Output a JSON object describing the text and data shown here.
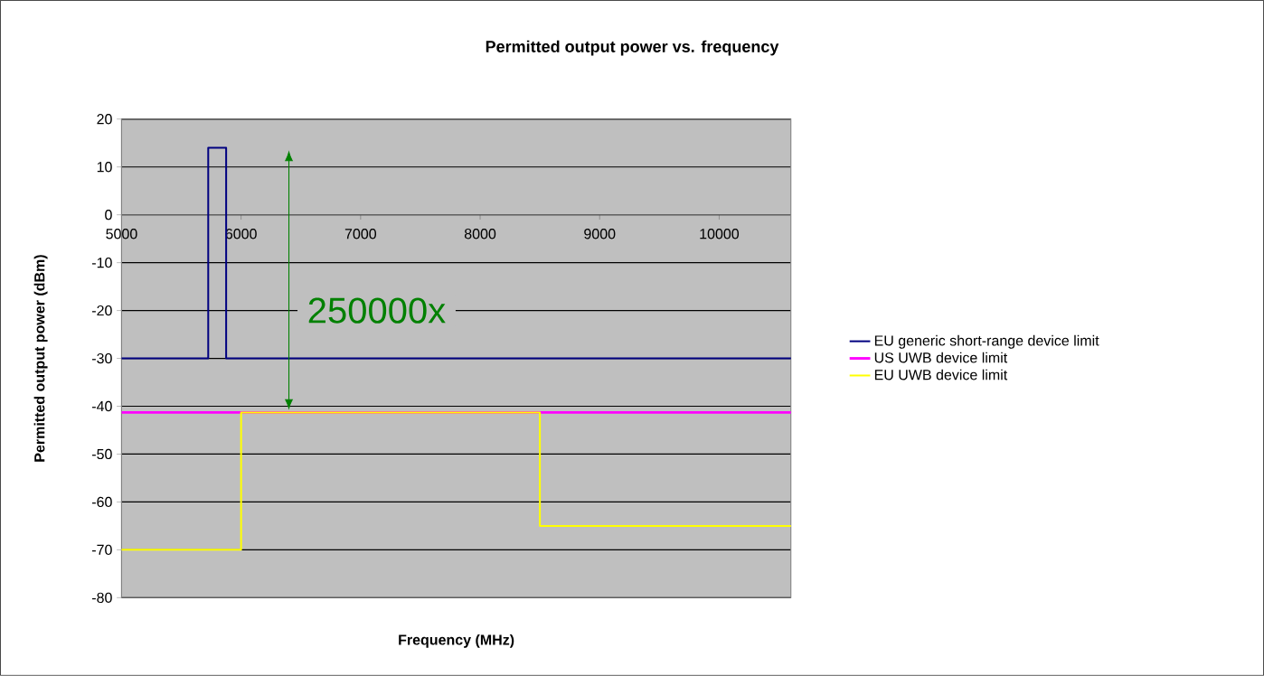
{
  "chart_data": {
    "type": "line",
    "title": "Permitted output power vs. frequency",
    "xlabel": "Frequency (MHz)",
    "ylabel": "Permitted output power (dBm)",
    "series": [
      {
        "name": "EU generic short-range device limit",
        "color": "#000080",
        "x": [
          5000,
          5725,
          5725,
          5875,
          5875,
          10600
        ],
        "values": [
          -30,
          -30,
          14,
          14,
          -30,
          -30
        ]
      },
      {
        "name": "US UWB device limit",
        "color": "#ff00ff",
        "x": [
          5000,
          10600
        ],
        "values": [
          -41.3,
          -41.3
        ]
      },
      {
        "name": "EU UWB device limit",
        "color": "#ffff00",
        "x": [
          5000,
          6000,
          6000,
          8500,
          8500,
          10600
        ],
        "values": [
          -70,
          -70,
          -41.3,
          -41.3,
          -65,
          -65
        ]
      }
    ],
    "xlim": [
      5000,
      10600
    ],
    "ylim": [
      -80,
      20
    ],
    "xticks": [
      5000,
      6000,
      7000,
      8000,
      9000,
      10000
    ],
    "yticks": [
      -80,
      -70,
      -60,
      -50,
      -40,
      -30,
      -20,
      -10,
      0,
      10,
      20
    ],
    "grid": "y",
    "legend": "right",
    "marker": "none",
    "line_style": "solid",
    "annotations": [
      "250000x"
    ]
  }
}
